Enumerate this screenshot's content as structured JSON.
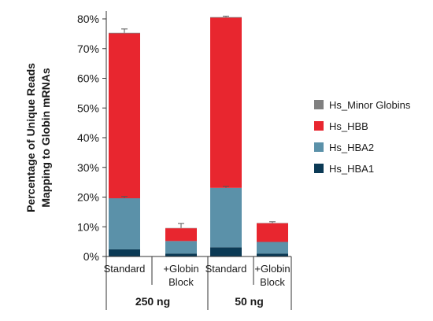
{
  "chart_data": {
    "type": "bar",
    "stacked": true,
    "ylabel_lines": [
      "Percentage of Unique Reads",
      "Mapping to Globin mRNAs"
    ],
    "ylim": [
      0,
      80
    ],
    "yticks": [
      0,
      10,
      20,
      30,
      40,
      50,
      60,
      70,
      80
    ],
    "ytick_suffix": "%",
    "grid": false,
    "legend_position": "right",
    "categories": [
      {
        "label_lines": [
          "Standard"
        ]
      },
      {
        "label_lines": [
          "+Globin",
          "Block"
        ]
      },
      {
        "label_lines": [
          "Standard"
        ]
      },
      {
        "label_lines": [
          "+Globin",
          "Block"
        ]
      }
    ],
    "groups": [
      {
        "label": "250 ng",
        "members": [
          0,
          1
        ]
      },
      {
        "label": "50 ng",
        "members": [
          2,
          3
        ]
      }
    ],
    "series": [
      {
        "name": "Hs_HBA1",
        "color": "#0b3a55",
        "values": [
          2.4,
          1.0,
          3.1,
          1.0
        ]
      },
      {
        "name": "Hs_HBA2",
        "color": "#5b91a9",
        "values": [
          17.2,
          4.2,
          20.0,
          3.9
        ]
      },
      {
        "name": "Hs_HBB",
        "color": "#e8262f",
        "values": [
          55.5,
          4.3,
          57.3,
          6.3
        ]
      },
      {
        "name": "Hs_Minor Globins",
        "color": "#808080",
        "values": [
          0.2,
          0.1,
          0.2,
          0.1
        ]
      }
    ],
    "total_error": [
      1.3,
      1.5,
      0.3,
      0.4
    ],
    "hba2_error": [
      0.6,
      0.0,
      0.5,
      0.0
    ]
  }
}
